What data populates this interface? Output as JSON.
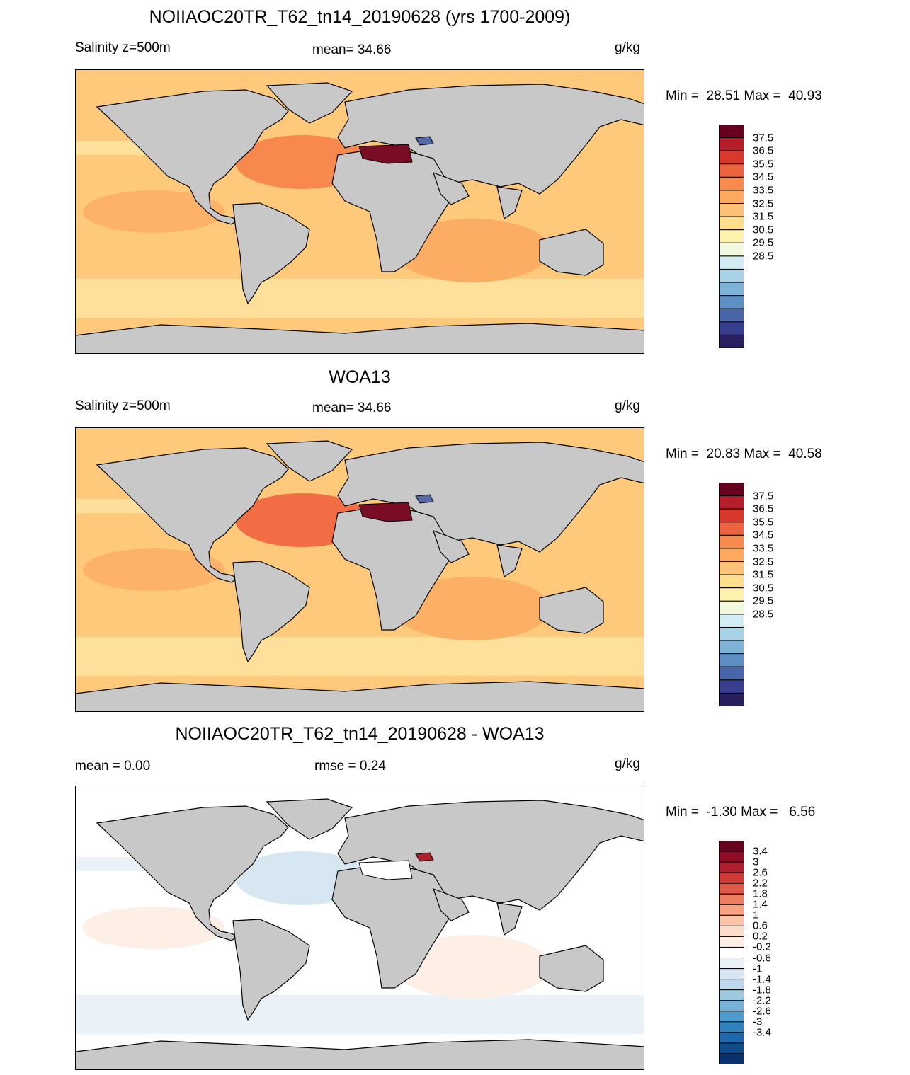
{
  "panels": [
    {
      "title": "NOIIAOC20TR_T62_tn14_20190628 (yrs 1700-2009)",
      "left_label": "Salinity z=500m",
      "center_label": "mean=  34.66",
      "units": "g/kg",
      "minmax": "Min =  28.51 Max =  40.93",
      "colorbar": {
        "colors": [
          "#2a1f5e",
          "#373f8e",
          "#4a66ab",
          "#5e8fc3",
          "#7eb2d6",
          "#a8d3e6",
          "#d2ecf3",
          "#f3f9de",
          "#fff2ae",
          "#ffdf8c",
          "#fdc177",
          "#fca95f",
          "#f88a4d",
          "#ec6340",
          "#d73a2d",
          "#b31e2a",
          "#67001f"
        ],
        "labels": [
          "37.5",
          "36.5",
          "35.5",
          "34.5",
          "33.5",
          "32.5",
          "31.5",
          "30.5",
          "29.5",
          "28.5"
        ]
      },
      "regions": {
        "ocean_base": "#fec97a",
        "south_band": "#fee09a",
        "subtropical_high": "#fdb26a",
        "atlantic_core": "#f7894f",
        "indian": "#fbad63",
        "medsea": "#7a0d25",
        "blacksea": "#5668a8",
        "land": "#c8c8c8"
      }
    },
    {
      "title": "WOA13",
      "left_label": "Salinity z=500m",
      "center_label": "mean=  34.66",
      "units": "g/kg",
      "minmax": "Min =  20.83 Max =  40.58",
      "colorbar": {
        "colors": [
          "#2a1f5e",
          "#373f8e",
          "#4a66ab",
          "#5e8fc3",
          "#7eb2d6",
          "#a8d3e6",
          "#d2ecf3",
          "#f3f9de",
          "#fff2ae",
          "#ffdf8c",
          "#fdc177",
          "#fca95f",
          "#f88a4d",
          "#ec6340",
          "#d73a2d",
          "#b31e2a",
          "#67001f"
        ],
        "labels": [
          "37.5",
          "36.5",
          "35.5",
          "34.5",
          "33.5",
          "32.5",
          "31.5",
          "30.5",
          "29.5",
          "28.5"
        ]
      },
      "regions": {
        "ocean_base": "#fec97a",
        "south_band": "#fee09a",
        "subtropical_high": "#fdb26a",
        "atlantic_core": "#f26d43",
        "indian": "#fbb066",
        "medsea": "#7a0d25",
        "blacksea": "#5668a8",
        "land": "#c8c8c8"
      }
    },
    {
      "title": "NOIIAOC20TR_T62_tn14_20190628 - WOA13",
      "left_label": "mean =   0.00",
      "center_label": "rmse =   0.24",
      "units": "g/kg",
      "minmax": "Min =  -1.30 Max =   6.56",
      "colorbar": {
        "colors": [
          "#08306b",
          "#0f4c8c",
          "#1f68ad",
          "#3282bd",
          "#4f9bcb",
          "#74b2d8",
          "#9ecae1",
          "#bcd8ea",
          "#d6e7f2",
          "#eaf2f8",
          "#ffffff",
          "#fdeee6",
          "#fcdccb",
          "#fbc4a8",
          "#f6a282",
          "#ee7f63",
          "#e05a47",
          "#cb3a35",
          "#b01f2d",
          "#8e0c25",
          "#67001f"
        ],
        "labels": [
          "3.4",
          "3",
          "2.6",
          "2.2",
          "1.8",
          "1.4",
          "1",
          "0.6",
          "0.2",
          "-0.2",
          "-0.6",
          "-1",
          "-1.4",
          "-1.8",
          "-2.2",
          "-2.6",
          "-3",
          "-3.4"
        ]
      },
      "regions": {
        "ocean_base": "#ffffff",
        "south_band": "#eaf2f8",
        "subtropical_high": "#fdeee6",
        "atlantic_core": "#d6e7f2",
        "indian": "#fdeee6",
        "medsea": "#ffffff",
        "blacksea": "#b01f2d",
        "land": "#c8c8c8"
      }
    }
  ]
}
